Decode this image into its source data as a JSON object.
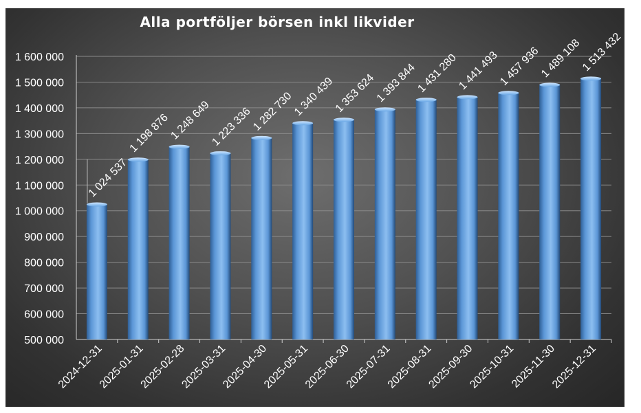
{
  "chart_data": {
    "type": "bar",
    "title": "Alla portföljer börsen inkl likvider",
    "categories": [
      "2024-12-31",
      "2025-01-31",
      "2025-02-28",
      "2025-03-31",
      "2025-04-30",
      "2025-05-31",
      "2025-06-30",
      "2025-07-31",
      "2025-08-31",
      "2025-09-30",
      "2025-10-31",
      "2025-11-30",
      "2025-12-31"
    ],
    "values": [
      1024537,
      1198876,
      1248649,
      1223336,
      1282730,
      1340439,
      1353624,
      1393844,
      1431280,
      1441493,
      1457936,
      1489108,
      1513432
    ],
    "value_labels": [
      "1 024 537",
      "1 198 876",
      "1 248 649",
      "1 223 336",
      "1 282 730",
      "1 340 439",
      "1 353 624",
      "1 393 844",
      "1 431 280",
      "1 441 493",
      "1 457 936",
      "1 489 108",
      "1 513 432"
    ],
    "ylim": [
      500000,
      1600000
    ],
    "y_ticks": [
      500000,
      600000,
      700000,
      800000,
      900000,
      1000000,
      1100000,
      1200000,
      1300000,
      1400000,
      1500000,
      1600000
    ],
    "y_tick_labels": [
      "500 000",
      "600 000",
      "700 000",
      "800 000",
      "900 000",
      "1 000 000",
      "1 100 000",
      "1 200 000",
      "1 300 000",
      "1 400 000",
      "1 500 000",
      "1 600 000"
    ],
    "xlabel": "",
    "ylabel": "",
    "grid": true,
    "colors": {
      "bar": "#5b9bd5",
      "background": "#4a4a4a",
      "text": "#ffffff"
    }
  }
}
